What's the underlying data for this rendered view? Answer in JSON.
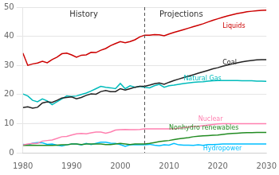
{
  "chart_data": {
    "type": "line",
    "x": [
      1980,
      1981,
      1982,
      1983,
      1984,
      1985,
      1986,
      1987,
      1988,
      1989,
      1990,
      1991,
      1992,
      1993,
      1994,
      1995,
      1996,
      1997,
      1998,
      1999,
      2000,
      2001,
      2002,
      2003,
      2004,
      2005,
      2006,
      2007,
      2008,
      2009,
      2010,
      2011,
      2012,
      2013,
      2014,
      2015,
      2016,
      2017,
      2018,
      2019,
      2020,
      2021,
      2022,
      2023,
      2024,
      2025,
      2026,
      2027,
      2028,
      2029,
      2030
    ],
    "series": [
      {
        "name": "Liquids",
        "color": "#cc0000",
        "values": [
          34.2,
          30.0,
          30.5,
          30.8,
          31.4,
          30.9,
          32.0,
          32.8,
          34.0,
          34.2,
          33.6,
          32.8,
          33.5,
          33.6,
          34.5,
          34.4,
          35.2,
          35.8,
          36.8,
          37.5,
          38.2,
          37.8,
          38.2,
          38.8,
          39.8,
          40.4,
          40.4,
          40.6,
          40.5,
          40.2,
          40.8,
          41.3,
          41.8,
          42.3,
          42.8,
          43.3,
          43.8,
          44.3,
          44.9,
          45.5,
          46.0,
          46.5,
          47.0,
          47.4,
          47.8,
          48.1,
          48.4,
          48.6,
          48.8,
          48.9,
          49.0
        ]
      },
      {
        "name": "Coal",
        "color": "#222222",
        "values": [
          15.5,
          15.8,
          15.3,
          15.6,
          17.1,
          17.5,
          17.3,
          18.0,
          18.8,
          19.0,
          19.2,
          18.5,
          19.0,
          19.7,
          20.2,
          20.1,
          21.0,
          21.4,
          21.0,
          21.0,
          22.0,
          21.5,
          22.0,
          22.5,
          22.8,
          22.8,
          23.2,
          23.7,
          24.0,
          23.5,
          24.2,
          24.8,
          25.3,
          25.8,
          26.3,
          26.8,
          27.3,
          27.8,
          28.3,
          28.8,
          29.2,
          29.7,
          30.1,
          30.5,
          30.9,
          31.2,
          31.5,
          31.7,
          31.9,
          32.0,
          32.0
        ]
      },
      {
        "name": "Natural Gas",
        "color": "#00bbbb",
        "values": [
          20.2,
          19.5,
          18.0,
          17.5,
          18.5,
          17.8,
          16.5,
          17.5,
          18.5,
          19.5,
          19.3,
          19.5,
          20.0,
          20.5,
          21.2,
          22.0,
          22.8,
          22.5,
          22.3,
          22.0,
          23.8,
          22.0,
          23.0,
          22.5,
          22.8,
          22.5,
          22.3,
          23.0,
          23.5,
          22.5,
          23.0,
          23.2,
          23.5,
          23.8,
          24.0,
          24.2,
          24.3,
          24.4,
          24.6,
          24.7,
          24.8,
          24.8,
          24.8,
          24.8,
          24.8,
          24.7,
          24.7,
          24.7,
          24.6,
          24.6,
          24.5
        ]
      },
      {
        "name": "Nuclear",
        "color": "#ff80b0",
        "values": [
          2.7,
          3.0,
          3.2,
          3.2,
          4.0,
          4.2,
          4.4,
          4.9,
          5.5,
          5.6,
          6.1,
          6.5,
          6.6,
          6.5,
          6.8,
          7.1,
          7.1,
          6.7,
          7.1,
          7.8,
          7.9,
          8.0,
          7.9,
          7.9,
          8.0,
          8.2,
          8.2,
          8.2,
          8.2,
          8.2,
          8.2,
          8.2,
          8.4,
          8.6,
          8.8,
          9.0,
          9.1,
          9.3,
          9.5,
          9.7,
          9.9,
          10.0,
          10.0,
          10.0,
          10.0,
          10.0,
          10.0,
          10.0,
          10.0,
          10.0,
          10.0
        ]
      },
      {
        "name": "Nonhydro renewables",
        "color": "#228B22",
        "values": [
          2.5,
          2.5,
          2.6,
          2.5,
          2.5,
          2.5,
          2.5,
          2.6,
          2.7,
          2.7,
          3.0,
          3.0,
          2.8,
          3.0,
          3.0,
          3.0,
          3.0,
          2.8,
          2.8,
          3.0,
          3.2,
          3.0,
          2.8,
          3.0,
          3.0,
          3.0,
          3.2,
          3.5,
          3.8,
          4.0,
          4.2,
          4.5,
          4.8,
          5.0,
          5.2,
          5.5,
          5.7,
          5.8,
          5.9,
          6.0,
          6.1,
          6.3,
          6.5,
          6.6,
          6.7,
          6.8,
          6.9,
          6.9,
          7.0,
          7.0,
          7.0
        ]
      },
      {
        "name": "Hydropower",
        "color": "#00bfff",
        "values": [
          2.9,
          2.7,
          3.3,
          3.5,
          3.4,
          2.9,
          3.0,
          2.6,
          2.3,
          2.7,
          3.0,
          3.0,
          2.7,
          3.2,
          2.8,
          3.2,
          3.6,
          3.6,
          3.3,
          3.2,
          2.8,
          2.2,
          2.7,
          2.8,
          2.7,
          2.7,
          2.9,
          2.6,
          2.4,
          2.7,
          2.6,
          3.2,
          2.7,
          2.6,
          2.6,
          2.5,
          2.7,
          2.5,
          2.8,
          2.8,
          2.9,
          3.0,
          3.0,
          3.0,
          3.0,
          3.0,
          3.0,
          3.0,
          3.0,
          3.0,
          3.0
        ]
      }
    ],
    "xlim": [
      1980,
      2030
    ],
    "xticks": [
      1980,
      1990,
      2000,
      2010,
      2020,
      2030
    ],
    "ylim": [
      0,
      50
    ],
    "yticks": [
      0,
      10,
      20,
      30,
      40,
      50
    ],
    "grid": "y",
    "divider": {
      "x": 2005,
      "line_style": "dashed",
      "labels": [
        "History",
        "Projections"
      ]
    },
    "annotations": [
      {
        "text": "Liquids",
        "x": 2021,
        "y": 43.5,
        "color": "#cc0000"
      },
      {
        "text": "Coal",
        "x": 2021,
        "y": 30.8,
        "color": "#222222"
      },
      {
        "text": "Natural Gas",
        "x": 2013,
        "y": 25.4,
        "color": "#00bbbb"
      },
      {
        "text": "Nuclear",
        "x": 2016,
        "y": 11.5,
        "color": "#ff80b0"
      },
      {
        "text": "Nonhydro renewables",
        "x": 2010,
        "y": 8.5,
        "color": "#228B22"
      },
      {
        "text": "Hydropower",
        "x": 2017,
        "y": 1.3,
        "color": "#00bfff"
      }
    ]
  }
}
